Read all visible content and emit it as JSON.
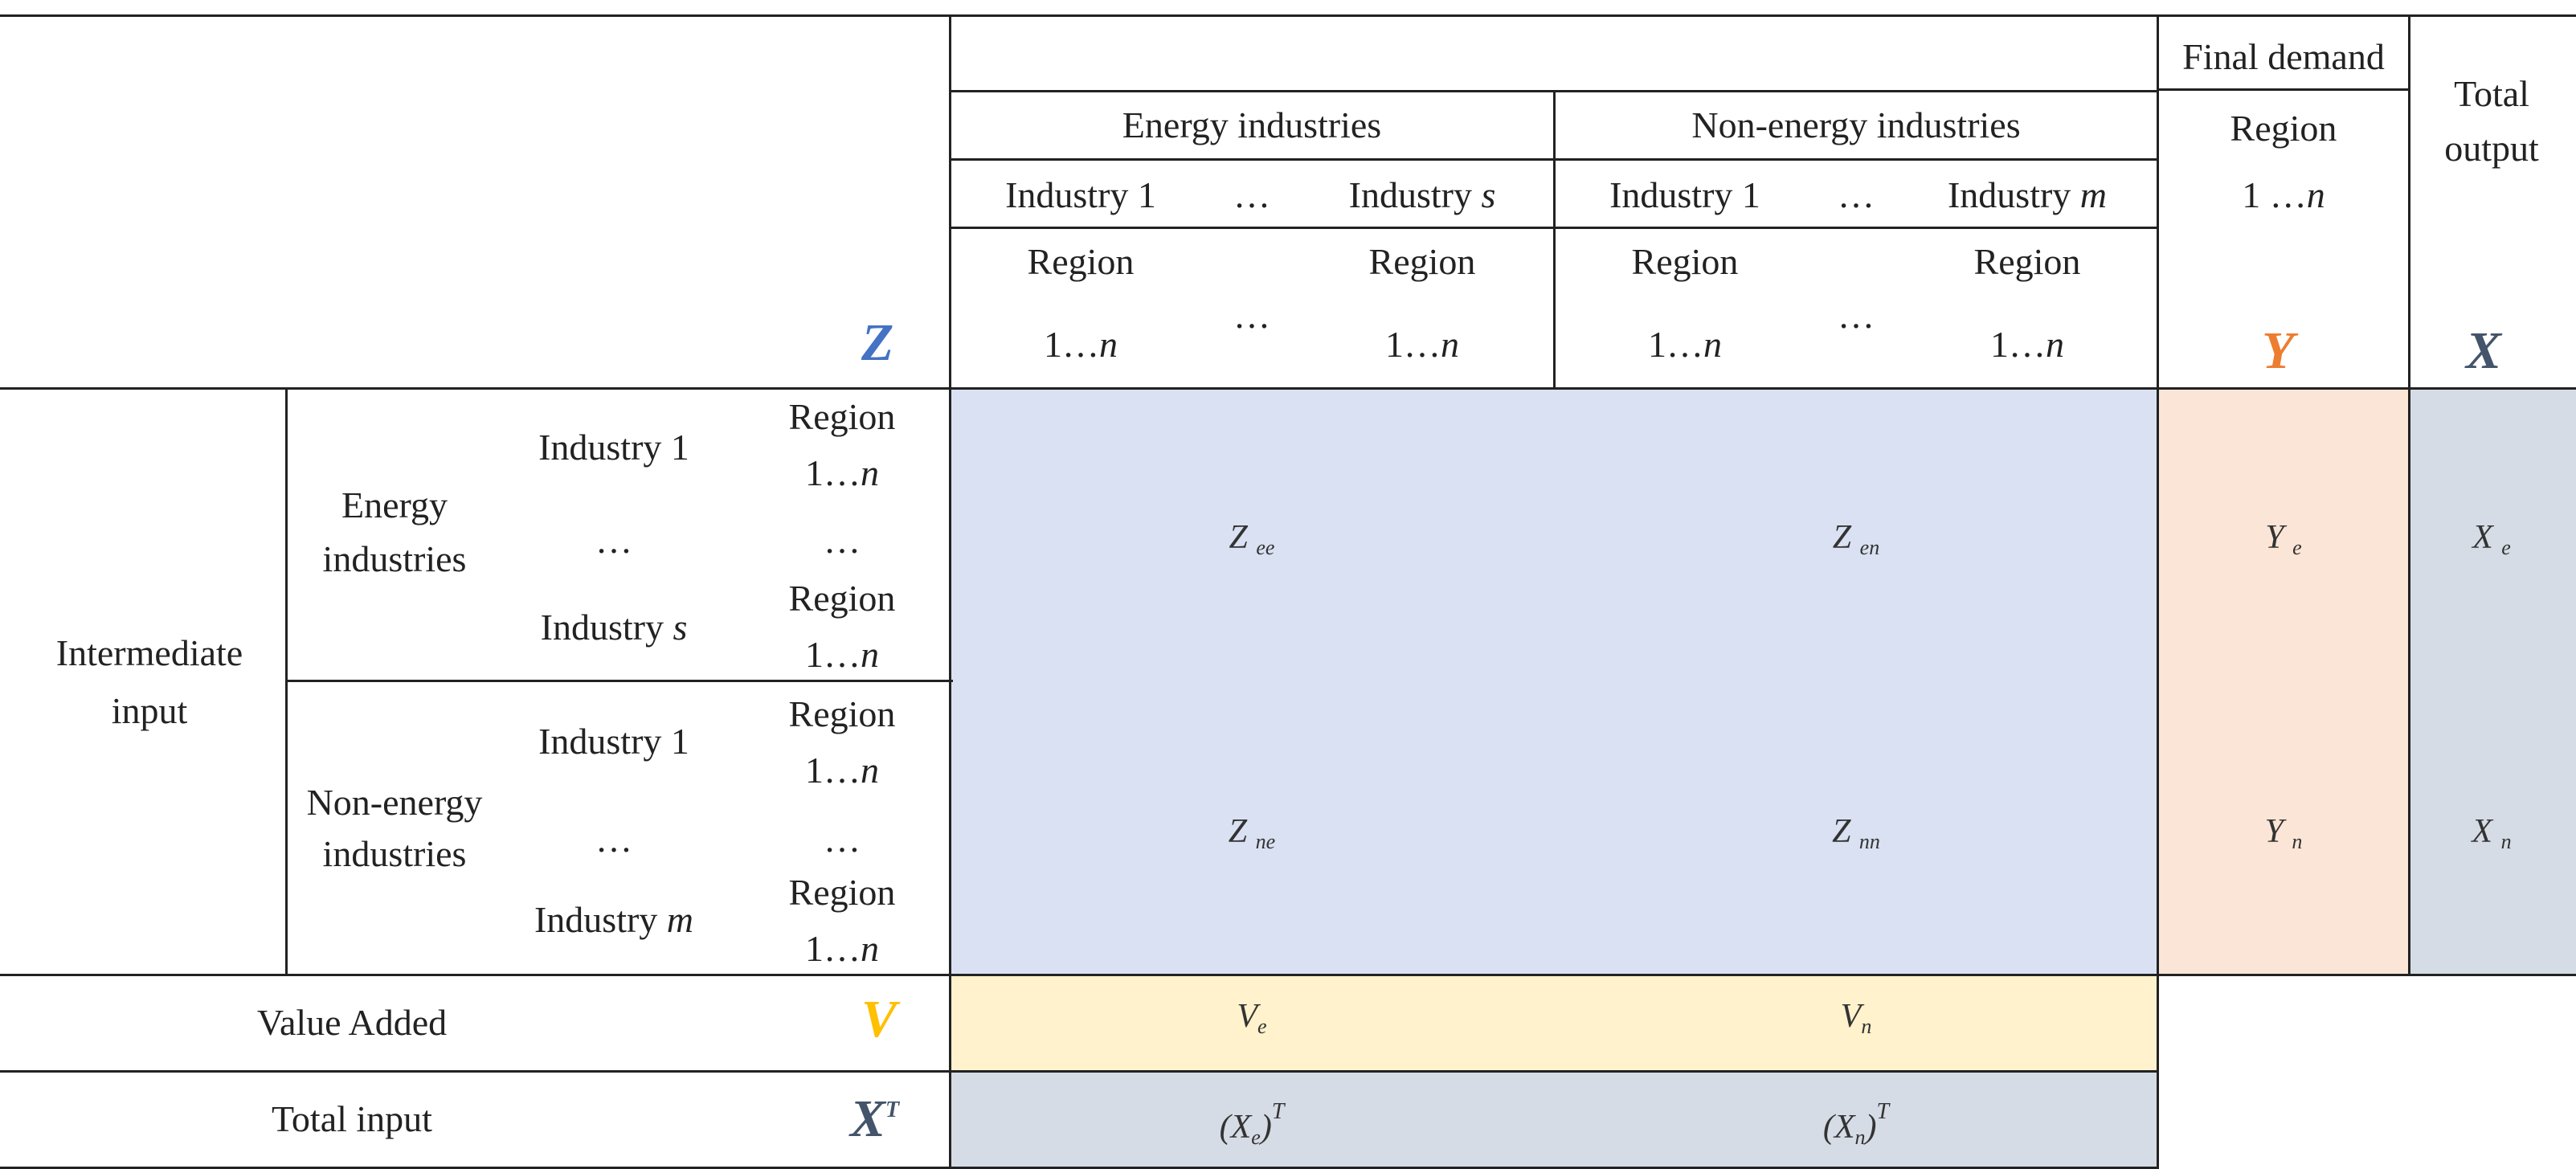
{
  "colors": {
    "Z": "#4472c4",
    "Y": "#ed7d31",
    "X": "#44546a",
    "V": "#ffc000",
    "Z_block": "#d9e1f2",
    "Y_block": "#fbe5d6",
    "X_block": "#d6dce5",
    "V_block": "#fff2cc",
    "XT_block": "#d6dce5"
  },
  "header": {
    "final_demand": "Final demand",
    "total_output": [
      "Total",
      "output"
    ],
    "energy_industries": "Energy industries",
    "non_energy_industries": "Non-energy industries",
    "industry_1": "Industry 1",
    "industry_prefix": "Industry",
    "s": "s",
    "m": "m",
    "ellipsis": "…",
    "region": "Region",
    "range_prefix": "1…",
    "range_n": "n",
    "fd_range_prefix": "1 …",
    "symbols": {
      "Z": "Z",
      "Y": "Y",
      "X": "X"
    }
  },
  "rows": {
    "intermediate_input": [
      "Intermediate",
      "input"
    ],
    "energy_industries": [
      "Energy",
      "industries"
    ],
    "non_energy_industries": [
      "Non-energy",
      "industries"
    ],
    "industry_1": "Industry 1",
    "industry_s": "Industry",
    "industry_m": "Industry",
    "s": "s",
    "m": "m",
    "ellipsis": "…",
    "region": "Region",
    "range_prefix": "1…",
    "range_n": "n"
  },
  "cells": {
    "Z_ee": {
      "base": "Z",
      "sub": "ee"
    },
    "Z_en": {
      "base": "Z",
      "sub": "en"
    },
    "Z_ne": {
      "base": "Z",
      "sub": "ne"
    },
    "Z_nn": {
      "base": "Z",
      "sub": "nn"
    },
    "Y_e": {
      "base": "Y",
      "sub": "e"
    },
    "Y_n": {
      "base": "Y",
      "sub": "n"
    },
    "X_e": {
      "base": "X",
      "sub": "e"
    },
    "X_n": {
      "base": "X",
      "sub": "n"
    },
    "V_e": {
      "base": "V",
      "sub": "e"
    },
    "V_n": {
      "base": "V",
      "sub": "n"
    },
    "XeT": {
      "open": "(X",
      "sub": "e",
      "close": ")",
      "sup": "T"
    },
    "XnT": {
      "open": "(X",
      "sub": "n",
      "close": ")",
      "sup": "T"
    }
  },
  "value_added": {
    "label": "Value Added",
    "symbol": "V"
  },
  "total_input": {
    "label": "Total input",
    "symbol": "X",
    "sup": "T"
  }
}
